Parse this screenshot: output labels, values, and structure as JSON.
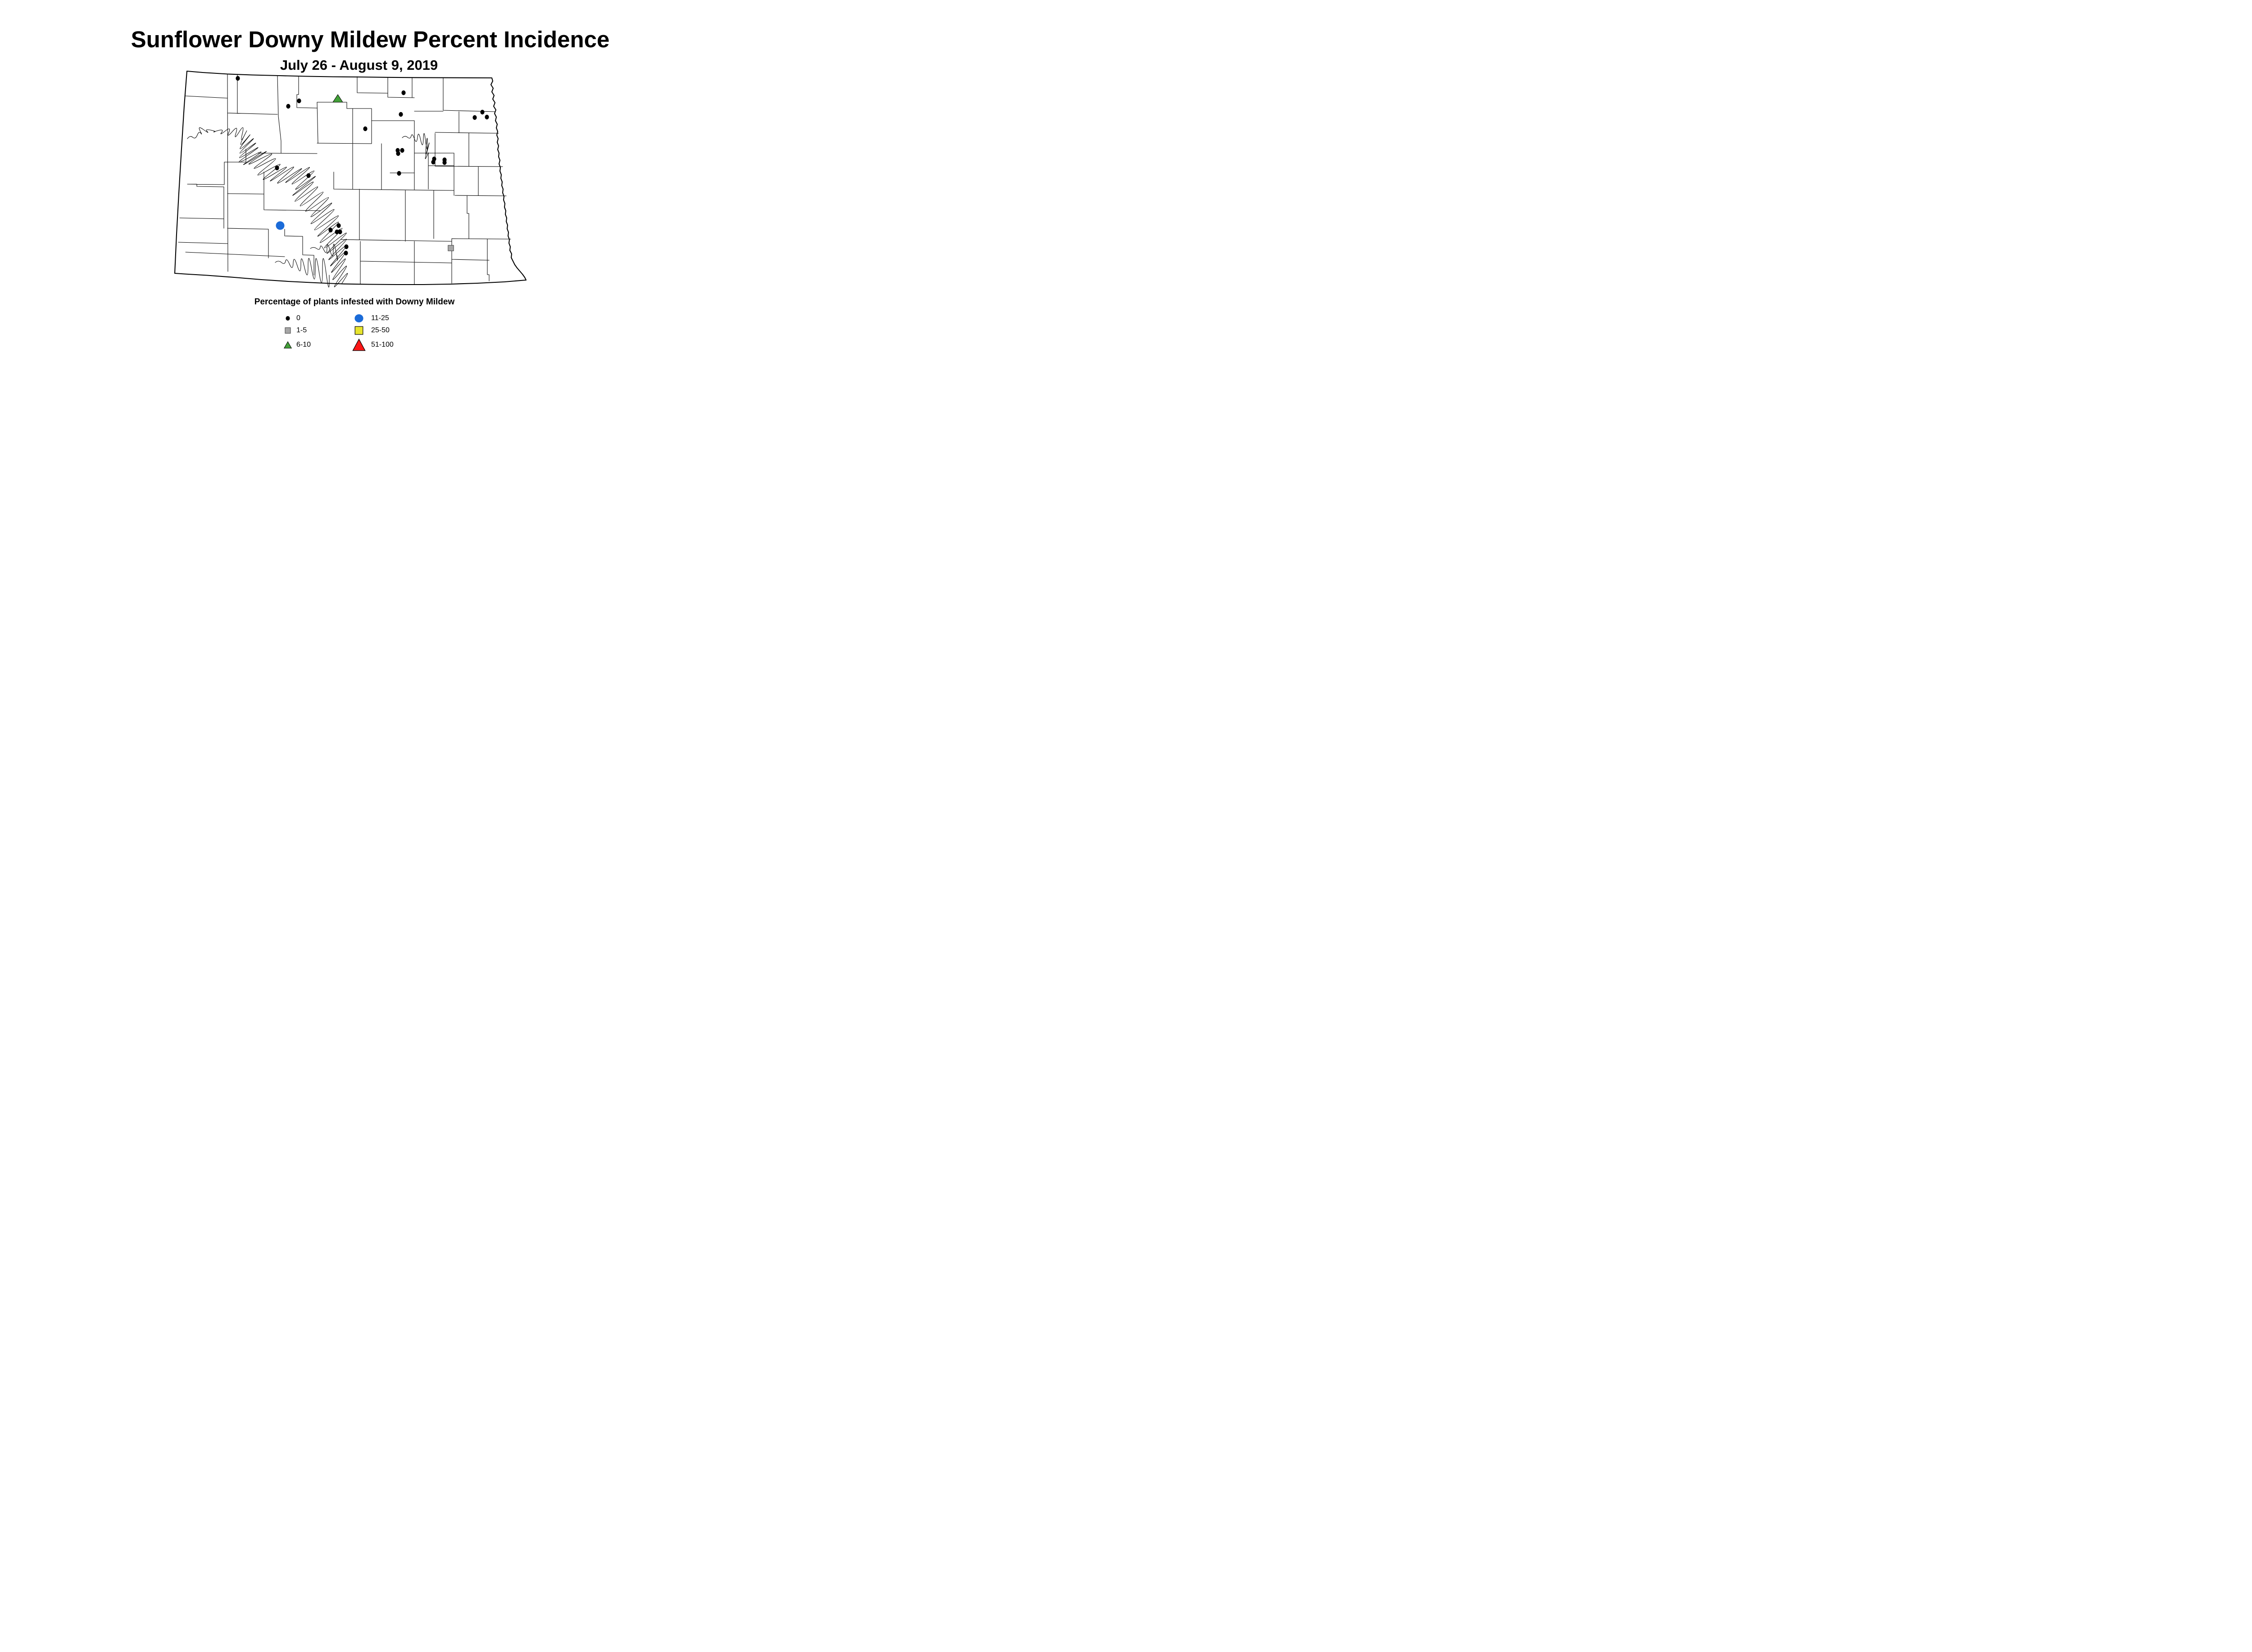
{
  "title": "Sunflower Downy Mildew Percent Incidence",
  "subtitle": "July 26 - August 9, 2019",
  "legend": {
    "title": "Percentage of plants infested with Downy Mildew",
    "items": [
      {
        "label": "0",
        "shape": "dot",
        "fill": "#000000",
        "stroke": "#000000"
      },
      {
        "label": "1-5",
        "shape": "square",
        "fill": "#A6A6A6",
        "stroke": "#3B3B3B"
      },
      {
        "label": "6-10",
        "shape": "triangle",
        "fill": "#42A038",
        "stroke": "#000000"
      },
      {
        "label": "11-25",
        "shape": "circle",
        "fill": "#1B6BD8",
        "stroke": "#1B6BD8"
      },
      {
        "label": "25-50",
        "shape": "square",
        "fill": "#E7E42D",
        "stroke": "#000000"
      },
      {
        "label": "51-100",
        "shape": "triangle",
        "fill": "#FB1717",
        "stroke": "#000000"
      }
    ]
  },
  "map": {
    "region": "North Dakota county map",
    "markers": {
      "dots_0": [
        [
          528,
          174
        ],
        [
          664,
          224
        ],
        [
          640,
          236
        ],
        [
          896,
          206
        ],
        [
          890,
          254
        ],
        [
          811,
          286
        ],
        [
          1071,
          249
        ],
        [
          1054,
          261
        ],
        [
          1081,
          260
        ],
        [
          883,
          334
        ],
        [
          893,
          334
        ],
        [
          884,
          341
        ],
        [
          964,
          353
        ],
        [
          962,
          360
        ],
        [
          987,
          355
        ],
        [
          987,
          361
        ],
        [
          886,
          385
        ],
        [
          615,
          373
        ],
        [
          685,
          390
        ],
        [
          752,
          501
        ],
        [
          734,
          511
        ],
        [
          748,
          515
        ],
        [
          755,
          515
        ],
        [
          769,
          548
        ],
        [
          768,
          562
        ]
      ],
      "squares_1_5": [
        [
          1001,
          551
        ]
      ],
      "triangles_6_10": [
        [
          750,
          219
        ]
      ],
      "circles_11_25": [
        [
          622,
          501
        ]
      ],
      "squares_25_50": [],
      "triangles_51_100": []
    }
  }
}
